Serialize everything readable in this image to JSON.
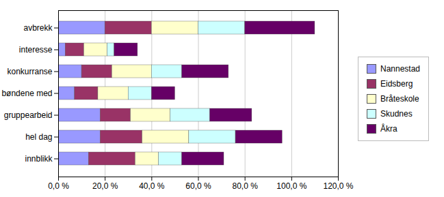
{
  "chart_data": {
    "type": "bar",
    "orientation": "horizontal",
    "stacked": true,
    "grid": true,
    "legend": "right",
    "categories": [
      "innblikk",
      "hel dag",
      "gruppearbeid",
      "bøndene med",
      "konkurranse",
      "interesse",
      "avbrekk"
    ],
    "series": [
      {
        "name": "Nannestad",
        "color": "#9999FF",
        "values": [
          13.0,
          18.0,
          18.0,
          7.0,
          10.0,
          3.0,
          20.0
        ]
      },
      {
        "name": "Eidsberg",
        "color": "#993366",
        "values": [
          20.0,
          18.0,
          13.0,
          10.0,
          13.0,
          8.0,
          20.0
        ]
      },
      {
        "name": "Bråteskole",
        "color": "#FFFFCC",
        "values": [
          10.0,
          20.0,
          17.0,
          13.0,
          17.0,
          10.0,
          20.0
        ]
      },
      {
        "name": "Skudnes",
        "color": "#CCFFFF",
        "values": [
          10.0,
          20.0,
          17.0,
          10.0,
          13.0,
          3.0,
          20.0
        ]
      },
      {
        "name": "Åkra",
        "color": "#660066",
        "values": [
          18.0,
          20.0,
          18.0,
          10.0,
          20.0,
          10.0,
          30.0
        ]
      }
    ],
    "xlim": [
      0,
      120
    ],
    "xticks": [
      {
        "value": 0,
        "label": "0,0 %"
      },
      {
        "value": 20,
        "label": "20,0 %"
      },
      {
        "value": 40,
        "label": "40,0 %"
      },
      {
        "value": 60,
        "label": "60,0 %"
      },
      {
        "value": 80,
        "label": "80,0 %"
      },
      {
        "value": 100,
        "label": "100,0 %"
      },
      {
        "value": 120,
        "label": "120,0 %"
      }
    ]
  }
}
